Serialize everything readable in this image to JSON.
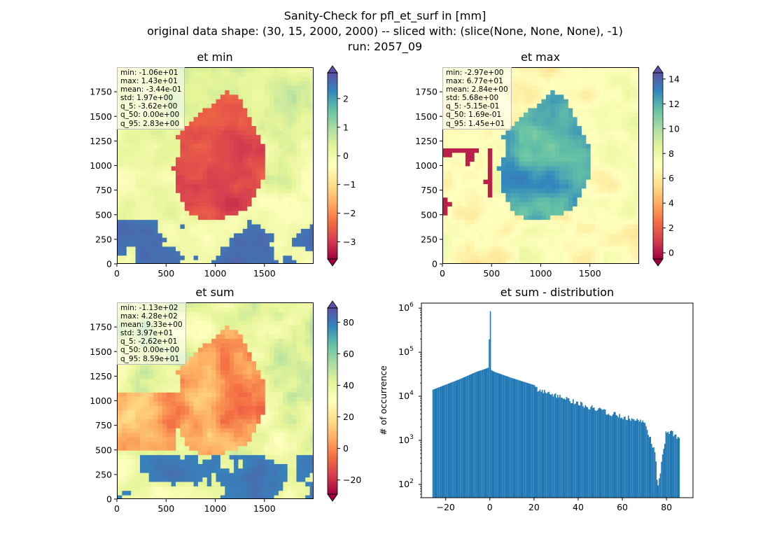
{
  "figure": {
    "title_line1": "Sanity-Check for pfl_et_surf in [mm]",
    "title_line2": "original data shape: (30, 15, 2000, 2000) -- sliced with: (slice(None, None, None), -1)",
    "title_line3": "run: 2057_09"
  },
  "colormap": "Spectral",
  "chart_data": [
    {
      "type": "heatmap",
      "title": "et min",
      "xlim": [
        0,
        2000
      ],
      "ylim": [
        0,
        2000
      ],
      "xticks": [
        "0",
        "500",
        "1000",
        "1500"
      ],
      "yticks": [
        "0",
        "250",
        "500",
        "750",
        "1000",
        "1250",
        "1500",
        "1750"
      ],
      "colorbar": {
        "vmin": -3.6,
        "vmax": 2.9,
        "extend": "both",
        "ticks": [
          "−3",
          "−2",
          "−1",
          "0",
          "1",
          "2"
        ],
        "tick_values": [
          -3,
          -2,
          -1,
          0,
          1,
          2
        ]
      },
      "stats": [
        "min: -1.06e+01",
        "max: 1.43e+01",
        "mean: -3.44e-01",
        "std: 1.97e+00",
        "q_5: -3.62e+00",
        "q_50: 0.00e+00",
        "q_95: 2.83e+00"
      ]
    },
    {
      "type": "heatmap",
      "title": "et max",
      "xlim": [
        0,
        2000
      ],
      "ylim": [
        0,
        2000
      ],
      "xticks": [
        "0",
        "500",
        "1000",
        "1500"
      ],
      "yticks": [
        "0",
        "250",
        "500",
        "750",
        "1000",
        "1250",
        "1500",
        "1750"
      ],
      "colorbar": {
        "vmin": -0.5,
        "vmax": 14.5,
        "extend": "both",
        "ticks": [
          "0",
          "2",
          "4",
          "6",
          "8",
          "10",
          "12",
          "14"
        ],
        "tick_values": [
          0,
          2,
          4,
          6,
          8,
          10,
          12,
          14
        ]
      },
      "stats": [
        "min: -2.97e+00",
        "max: 6.77e+01",
        "mean: 2.84e+00",
        "std: 5.68e+00",
        "q_5: -5.15e-01",
        "q_50: 1.69e-01",
        "q_95: 1.45e+01"
      ]
    },
    {
      "type": "heatmap",
      "title": "et sum",
      "xlim": [
        0,
        2000
      ],
      "ylim": [
        0,
        2000
      ],
      "xticks": [
        "0",
        "500",
        "1000",
        "1500"
      ],
      "yticks": [
        "0",
        "250",
        "500",
        "750",
        "1000",
        "1250",
        "1500",
        "1750"
      ],
      "colorbar": {
        "vmin": -29,
        "vmax": 89,
        "extend": "both",
        "ticks": [
          "−20",
          "0",
          "20",
          "40",
          "60",
          "80"
        ],
        "tick_values": [
          -20,
          0,
          20,
          40,
          60,
          80
        ]
      },
      "stats": [
        "min: -1.13e+02",
        "max: 4.28e+02",
        "mean: 9.33e+00",
        "std: 3.97e+01",
        "q_5: -2.62e+01",
        "q_50: 0.00e+00",
        "q_95: 8.59e+01"
      ]
    },
    {
      "type": "bar",
      "title": "et sum - distribution",
      "xlabel": "",
      "ylabel": "# of occurrence",
      "yscale": "log",
      "xlim": [
        -31,
        92
      ],
      "ylim": [
        50,
        1300000
      ],
      "xticks": [
        "−20",
        "0",
        "20",
        "40",
        "60",
        "80"
      ],
      "xtick_values": [
        -20,
        0,
        20,
        40,
        60,
        80
      ],
      "ytick_values": [
        100,
        1000,
        10000,
        100000,
        1000000
      ],
      "color": "#1f77b4",
      "x": [
        -26,
        -14,
        -6,
        -2,
        -1,
        -0.5,
        0,
        0.5,
        2,
        10,
        20,
        30,
        40,
        50,
        60,
        70,
        75,
        76,
        80,
        85,
        86
      ],
      "values": [
        14000,
        24000,
        36000,
        42000,
        44000,
        45000,
        850000,
        40000,
        36000,
        26000,
        18000,
        12000,
        8000,
        5500,
        4000,
        3000,
        600,
        80,
        2000,
        1400,
        1200
      ]
    }
  ]
}
